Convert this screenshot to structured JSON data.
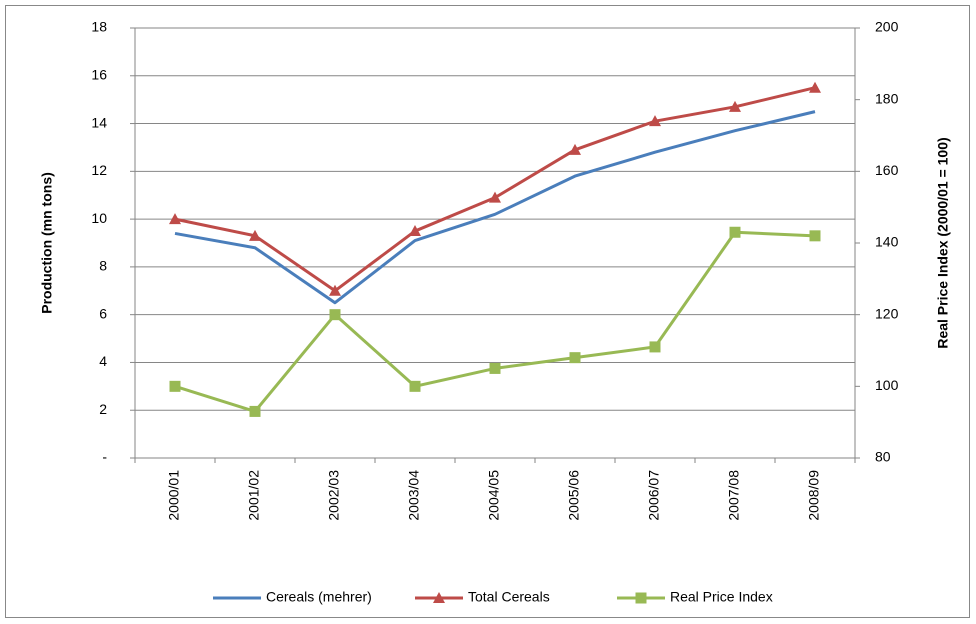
{
  "chart_data": {
    "type": "line",
    "categories": [
      "2000/01",
      "2001/02",
      "2002/03",
      "2003/04",
      "2004/05",
      "2005/06",
      "2006/07",
      "2007/08",
      "2008/09"
    ],
    "y_label": "Production (mn tons)",
    "y2_label": "Real Price Index (2000/01 = 100)",
    "ylim": [
      0,
      18
    ],
    "yticks": [
      {
        "value": 0,
        "label": "-"
      },
      2,
      4,
      6,
      8,
      10,
      12,
      14,
      16,
      18
    ],
    "y2lim": [
      80,
      200
    ],
    "y2ticks": [
      80,
      100,
      120,
      140,
      160,
      180,
      200
    ],
    "grid": true,
    "legend": "bottom",
    "series": [
      {
        "name": "Cereals (mehrer)",
        "color": "#4a7ebb",
        "marker": "none",
        "values": [
          9.4,
          8.8,
          6.5,
          9.1,
          10.2,
          11.8,
          12.8,
          13.7,
          14.5
        ]
      },
      {
        "name": "Total Cereals",
        "color": "#be4b48",
        "marker": "triangle",
        "values": [
          10.0,
          9.3,
          7.0,
          9.5,
          10.9,
          12.9,
          14.1,
          14.7,
          15.5
        ]
      },
      {
        "name": "Real Price Index",
        "color": "#98b954",
        "marker": "square",
        "axis": "y2",
        "values": [
          100,
          93,
          120,
          100,
          105,
          108,
          111,
          143,
          142
        ]
      }
    ]
  }
}
